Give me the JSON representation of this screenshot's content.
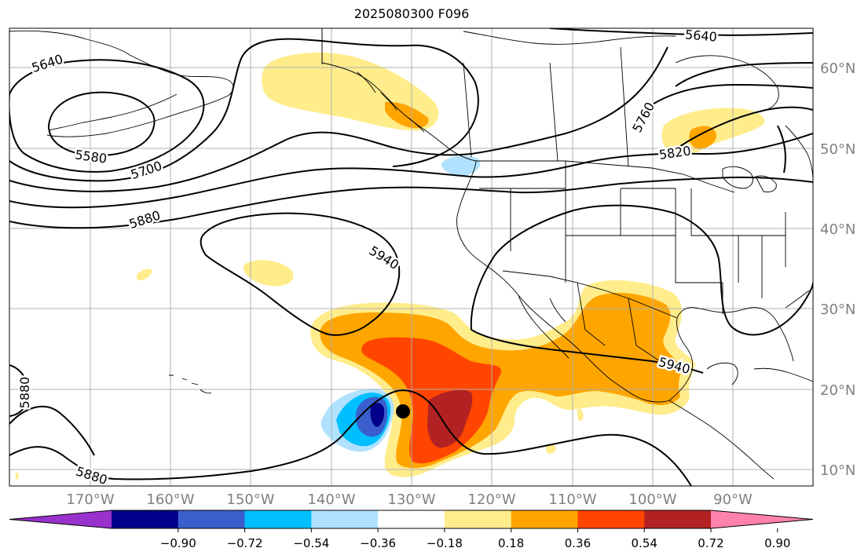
{
  "title": "2025080300 F096",
  "lon_labels": [
    "170°W",
    "160°W",
    "150°W",
    "140°W",
    "130°W",
    "120°W",
    "110°W",
    "100°W",
    "90°W"
  ],
  "lat_labels": [
    "60°N",
    "50°N",
    "40°N",
    "30°N",
    "20°N",
    "10°N"
  ],
  "colorbar": {
    "colors": [
      "#9932cc",
      "#00008b",
      "#3a5fcd",
      "#00bfff",
      "#b0e2ff",
      "#ffffff",
      "#ffec8b",
      "#ffa500",
      "#ff4500",
      "#b22222",
      "#ff82ab"
    ],
    "tick_labels": [
      "−0.90",
      "−0.72",
      "−0.54",
      "−0.36",
      "−0.18",
      "0.18",
      "0.36",
      "0.54",
      "0.72",
      "0.90"
    ]
  },
  "contour_labels": [
    {
      "text": "5640",
      "rot": -18
    },
    {
      "text": "5580",
      "rot": 8
    },
    {
      "text": "5700",
      "rot": -18
    },
    {
      "text": "5880",
      "rot": -18
    },
    {
      "text": "5940",
      "rot": 32
    },
    {
      "text": "5880",
      "rot": -90
    },
    {
      "text": "5880",
      "rot": 18
    },
    {
      "text": "5640",
      "rot": 5
    },
    {
      "text": "5760",
      "rot": -62
    },
    {
      "text": "5820",
      "rot": -8
    },
    {
      "text": "5940",
      "rot": 15
    }
  ],
  "colors": {
    "contour": "#000000",
    "grid": "#b0b0b0",
    "tick_label": "#808080",
    "coast": "#000000"
  }
}
